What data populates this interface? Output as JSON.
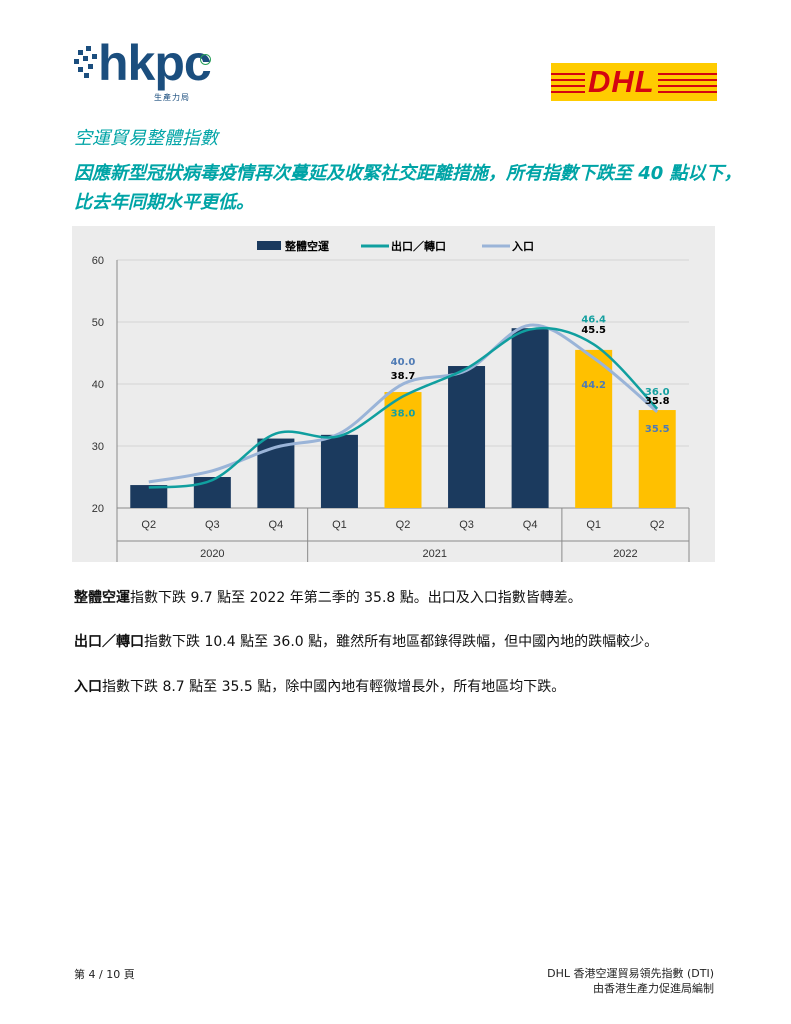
{
  "header": {
    "hkpc_logo": {
      "word": "hkpc",
      "sub": "生產力局"
    },
    "dhl_logo": {
      "word": "DHL"
    }
  },
  "title": "空運貿易整體指數",
  "subtitle": "因應新型冠狀病毒疫情再次蔓延及收緊社交距離措施，所有指數下跌至 40 點以下，比去年同期水平更低。",
  "chart_data": {
    "type": "bar",
    "legend": [
      "整體空運",
      "出口／轉口",
      "入口"
    ],
    "legend_position": "top",
    "categories": [
      "Q2",
      "Q3",
      "Q4",
      "Q1",
      "Q2",
      "Q3",
      "Q4",
      "Q1",
      "Q2"
    ],
    "years": [
      {
        "label": "2020",
        "span": [
          0,
          3
        ]
      },
      {
        "label": "2021",
        "span": [
          3,
          7
        ]
      },
      {
        "label": "2022",
        "span": [
          7,
          9
        ]
      }
    ],
    "series": [
      {
        "name": "整體空運",
        "type": "bar",
        "values": [
          23.7,
          25.0,
          31.2,
          31.8,
          38.7,
          42.9,
          49.0,
          45.5,
          35.8
        ]
      },
      {
        "name": "出口／轉口",
        "type": "line",
        "values": [
          23.3,
          24.5,
          32.0,
          31.6,
          38.0,
          42.5,
          48.8,
          46.4,
          36.0
        ]
      },
      {
        "name": "入口",
        "type": "line",
        "values": [
          24.2,
          26.0,
          29.8,
          32.0,
          40.0,
          42.2,
          49.5,
          44.2,
          35.5
        ]
      }
    ],
    "bar_labels": [
      {
        "index": 4,
        "value": "38.7"
      },
      {
        "index": 7,
        "value": "45.5"
      },
      {
        "index": 8,
        "value": "35.8"
      }
    ],
    "export_labels": [
      {
        "index": 4,
        "value": "38.0"
      },
      {
        "index": 7,
        "value": "46.4"
      },
      {
        "index": 8,
        "value": "36.0"
      }
    ],
    "import_labels": [
      {
        "index": 4,
        "value": "40.0"
      },
      {
        "index": 7,
        "value": "44.2"
      },
      {
        "index": 8,
        "value": "35.5"
      }
    ],
    "ylim": [
      20,
      60
    ],
    "yticks": [
      20,
      30,
      40,
      50,
      60
    ],
    "grid": true,
    "colors": {
      "bar": "#1b3a5e",
      "bar_highlight": "#ffc000",
      "export": "#109f9f",
      "import": "#9ab4d8",
      "export_label": "#15a0a0",
      "import_label": "#4f7bb5",
      "bar_label": "#000000"
    }
  },
  "paragraphs": [
    {
      "bold": "整體空運",
      "text": "指數下跌 9.7 點至 2022 年第二季的 35.8 點。出口及入口指數皆轉差。"
    },
    {
      "bold": "出口／轉口",
      "text": "指數下跌 10.4 點至 36.0 點，雖然所有地區都錄得跌幅，但中國內地的跌幅較少。"
    },
    {
      "bold": "入口",
      "text": "指數下跌 8.7 點至 35.5 點，除中國內地有輕微增長外，所有地區均下跌。"
    }
  ],
  "footer": {
    "page": "第 4 / 10 頁",
    "right_line1": "DHL 香港空運貿易領先指數 (DTI)",
    "right_line2": "由香港生產力促進局編制"
  }
}
